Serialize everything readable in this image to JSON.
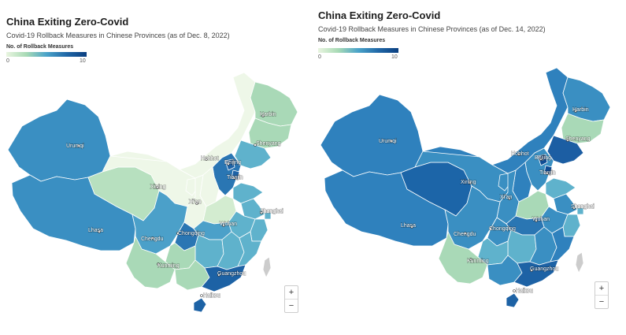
{
  "maps": [
    {
      "title": "China Exiting Zero-Covid",
      "subtitle": "Covid-19 Rollback Measures in Chinese Provinces (as of Dec. 8, 2022)",
      "legend": {
        "title": "No. of Rollback Measures",
        "min": "0",
        "max": "10"
      },
      "cities": {
        "harbin": "Harbin",
        "shenyang": "Shenyang",
        "hohhot": "Hohhot",
        "beijing": "Beijing",
        "tianjin": "Tianjin",
        "urumqi": "Urumqi",
        "xining": "Xining",
        "xian": "Xi'an",
        "shanghai": "Shanghai",
        "wuhan": "Wuhan",
        "lhasa": "Lhasa",
        "chengdu": "Chengdu",
        "chongqing": "Chongqing",
        "kunming": "Kunming",
        "guangzhou": "Guangzhou",
        "haikou": "Haikou"
      },
      "colors": {
        "xinjiang": "#3a8fc2",
        "tibet": "#3a8fc2",
        "qinghai": "#b7e0bf",
        "gansu": "#eef7e8",
        "inner_mongolia": "#eef7e8",
        "heilongjiang": "#a9d9b7",
        "jilin": "#a9d9b7",
        "liaoning": "#5fb2cc",
        "beijing": "#1d62a5",
        "tianjin": "#1d62a5",
        "hebei": "#2a76b3",
        "shanxi": "#eef7e8",
        "shaanxi": "#eef7e8",
        "ningxia": "#eef7e8",
        "henan": "#d3ecd0",
        "shandong": "#5fb2cc",
        "jiangsu": "#5fb2cc",
        "shanghai": "#5fb2cc",
        "anhui": "#5fb2cc",
        "zhejiang": "#5fb2cc",
        "hubei": "#4ba0c9",
        "hunan": "#5fb2cc",
        "jiangxi": "#5fb2cc",
        "fujian": "#5fb2cc",
        "sichuan": "#4ba0c9",
        "chongqing": "#2a76b3",
        "guizhou": "#a9d9b7",
        "yunnan": "#a9d9b7",
        "guangxi": "#a9d9b7",
        "guangdong": "#1d62a5",
        "hainan": "#1d62a5",
        "taiwan": "#cccccc"
      },
      "zoom": {
        "in": "+",
        "out": "−"
      }
    },
    {
      "title": "China Exiting Zero-Covid",
      "subtitle": "Covid-19 Rollback Measures in Chinese Provinces (as of Dec. 14, 2022)",
      "legend": {
        "title": "No. of Rollback Measures",
        "min": "0",
        "max": "10"
      },
      "cities": {
        "harbin": "Harbin",
        "shenyang": "Shenyang",
        "hohhot": "Hohhot",
        "beijing": "Beijing",
        "tianjin": "Tianjin",
        "urumqi": "Urumqi",
        "xining": "Xining",
        "xian": "Xi'an",
        "shanghai": "Shanghai",
        "wuhan": "Wuhan",
        "lhasa": "Lhasa",
        "chengdu": "Chengdu",
        "chongqing": "Chongqing",
        "kunming": "Kunming",
        "guangzhou": "Guangzhou",
        "haikou": "Haikou"
      },
      "colors": {
        "xinjiang": "#2f81bd",
        "tibet": "#2f81bd",
        "qinghai": "#1c65a8",
        "gansu": "#3a8fc2",
        "inner_mongolia": "#2f81bd",
        "heilongjiang": "#3a8fc2",
        "jilin": "#a9d9b7",
        "liaoning": "#1c5ea3",
        "beijing": "#0f4c93",
        "tianjin": "#0f4c93",
        "hebei": "#3a8fc2",
        "shanxi": "#2f81bd",
        "shaanxi": "#3a8fc2",
        "ningxia": "#3a8fc2",
        "henan": "#a9d9b7",
        "shandong": "#5fb2cc",
        "jiangsu": "#3a8fc2",
        "shanghai": "#5fb2cc",
        "anhui": "#3a8fc2",
        "zhejiang": "#5fb2cc",
        "hubei": "#2a76b3",
        "hunan": "#5fb2cc",
        "jiangxi": "#3a8fc2",
        "fujian": "#2f81bd",
        "sichuan": "#3a8fc2",
        "chongqing": "#3a8fc2",
        "guizhou": "#5fb2cc",
        "yunnan": "#a9d9b7",
        "guangxi": "#3a8fc2",
        "guangdong": "#1d62a5",
        "hainan": "#1d62a5",
        "taiwan": "#cccccc"
      },
      "zoom": {
        "in": "+",
        "out": "−"
      }
    }
  ]
}
